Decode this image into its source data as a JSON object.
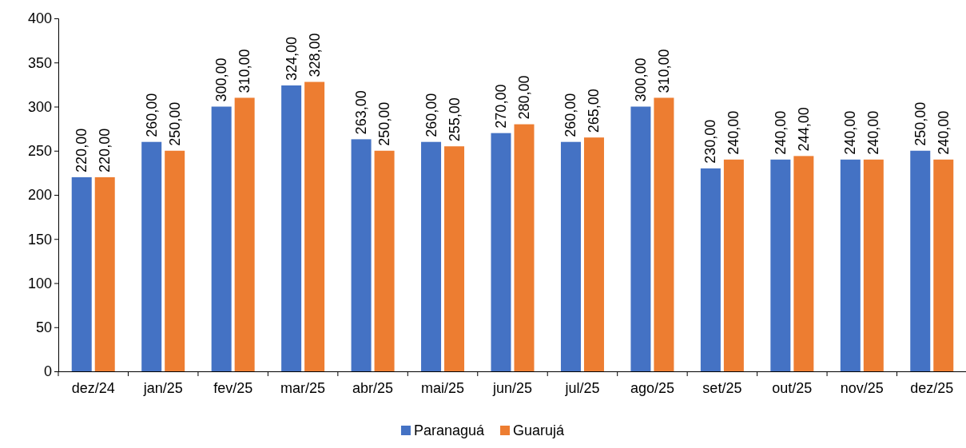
{
  "chart_data": {
    "type": "bar",
    "categories": [
      "dez/24",
      "jan/25",
      "fev/25",
      "mar/25",
      "abr/25",
      "mai/25",
      "jun/25",
      "jul/25",
      "ago/25",
      "set/25",
      "out/25",
      "nov/25",
      "dez/25"
    ],
    "series": [
      {
        "name": "Paranaguá",
        "color": "#4472c4",
        "values": [
          220,
          260,
          300,
          324,
          263,
          260,
          270,
          260,
          300,
          230,
          240,
          240,
          250
        ],
        "value_labels": [
          "220,00",
          "260,00",
          "300,00",
          "324,00",
          "263,00",
          "260,00",
          "270,00",
          "260,00",
          "300,00",
          "230,00",
          "240,00",
          "240,00",
          "250,00"
        ]
      },
      {
        "name": "Guarujá",
        "color": "#ed7d31",
        "values": [
          220,
          250,
          310,
          328,
          250,
          255,
          280,
          265,
          310,
          240,
          244,
          240,
          240
        ],
        "value_labels": [
          "220,00",
          "250,00",
          "310,00",
          "328,00",
          "250,00",
          "255,00",
          "280,00",
          "265,00",
          "310,00",
          "240,00",
          "244,00",
          "240,00",
          "240,00"
        ]
      }
    ],
    "ylim": [
      0,
      400
    ],
    "yticks": [
      0,
      50,
      100,
      150,
      200,
      250,
      300,
      350,
      400
    ],
    "grid": false,
    "legend": "bottom"
  }
}
